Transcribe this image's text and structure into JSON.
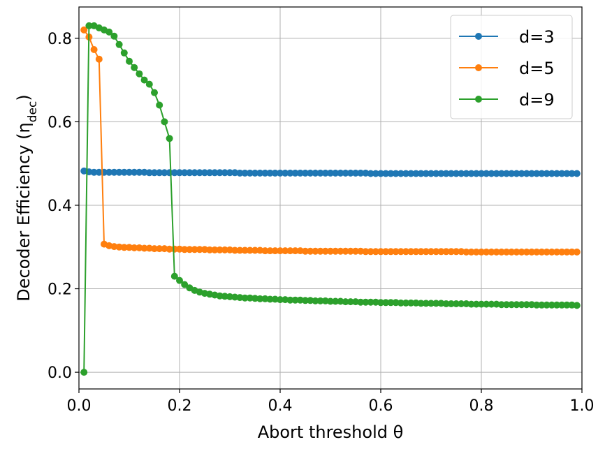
{
  "chart_data": {
    "type": "line",
    "xlabel": "Abort threshold θ",
    "ylabel": "Decoder Efficiency (η",
    "ylabel_sub": "dec",
    "ylabel_close": ")",
    "xlim": [
      0.0,
      1.0
    ],
    "ylim": [
      -0.04,
      0.875
    ],
    "xticks": [
      0.0,
      0.2,
      0.4,
      0.6,
      0.8,
      1.0
    ],
    "xtick_labels": [
      "0.0",
      "0.2",
      "0.4",
      "0.6",
      "0.8",
      "1.0"
    ],
    "yticks": [
      0.0,
      0.2,
      0.4,
      0.6,
      0.8
    ],
    "ytick_labels": [
      "0.0",
      "0.2",
      "0.4",
      "0.6",
      "0.8"
    ],
    "grid": true,
    "legend_position": "top-right",
    "series": [
      {
        "name": "d=3",
        "color": "#1f77b4",
        "x": [
          0.01,
          0.02,
          0.03,
          0.04,
          0.05,
          0.06,
          0.07,
          0.08,
          0.09,
          0.1,
          0.11,
          0.12,
          0.13,
          0.14,
          0.15,
          0.16,
          0.17,
          0.18,
          0.19,
          0.2,
          0.21,
          0.22,
          0.23,
          0.24,
          0.25,
          0.26,
          0.27,
          0.28,
          0.29,
          0.3,
          0.31,
          0.32,
          0.33,
          0.34,
          0.35,
          0.36,
          0.37,
          0.38,
          0.39,
          0.4,
          0.41,
          0.42,
          0.43,
          0.44,
          0.45,
          0.46,
          0.47,
          0.48,
          0.49,
          0.5,
          0.51,
          0.52,
          0.53,
          0.54,
          0.55,
          0.56,
          0.57,
          0.58,
          0.59,
          0.6,
          0.61,
          0.62,
          0.63,
          0.64,
          0.65,
          0.66,
          0.67,
          0.68,
          0.69,
          0.7,
          0.71,
          0.72,
          0.73,
          0.74,
          0.75,
          0.76,
          0.77,
          0.78,
          0.79,
          0.8,
          0.81,
          0.82,
          0.83,
          0.84,
          0.85,
          0.86,
          0.87,
          0.88,
          0.89,
          0.9,
          0.91,
          0.92,
          0.93,
          0.94,
          0.95,
          0.96,
          0.97,
          0.98,
          0.99
        ],
        "y": [
          0.482,
          0.48,
          0.479,
          0.479,
          0.479,
          0.479,
          0.479,
          0.479,
          0.479,
          0.479,
          0.479,
          0.479,
          0.479,
          0.478,
          0.478,
          0.478,
          0.478,
          0.478,
          0.478,
          0.478,
          0.478,
          0.478,
          0.478,
          0.478,
          0.478,
          0.478,
          0.478,
          0.478,
          0.478,
          0.478,
          0.478,
          0.477,
          0.477,
          0.477,
          0.477,
          0.477,
          0.477,
          0.477,
          0.477,
          0.477,
          0.477,
          0.477,
          0.477,
          0.477,
          0.477,
          0.477,
          0.477,
          0.477,
          0.477,
          0.477,
          0.477,
          0.477,
          0.477,
          0.477,
          0.477,
          0.477,
          0.477,
          0.476,
          0.476,
          0.476,
          0.476,
          0.476,
          0.476,
          0.476,
          0.476,
          0.476,
          0.476,
          0.476,
          0.476,
          0.476,
          0.476,
          0.476,
          0.476,
          0.476,
          0.476,
          0.476,
          0.476,
          0.476,
          0.476,
          0.476,
          0.476,
          0.476,
          0.476,
          0.476,
          0.476,
          0.476,
          0.476,
          0.476,
          0.476,
          0.476,
          0.476,
          0.476,
          0.476,
          0.476,
          0.476,
          0.476,
          0.476,
          0.476,
          0.476
        ]
      },
      {
        "name": "d=5",
        "color": "#ff7f0e",
        "x": [
          0.01,
          0.02,
          0.03,
          0.04,
          0.05,
          0.06,
          0.07,
          0.08,
          0.09,
          0.1,
          0.11,
          0.12,
          0.13,
          0.14,
          0.15,
          0.16,
          0.17,
          0.18,
          0.19,
          0.2,
          0.21,
          0.22,
          0.23,
          0.24,
          0.25,
          0.26,
          0.27,
          0.28,
          0.29,
          0.3,
          0.31,
          0.32,
          0.33,
          0.34,
          0.35,
          0.36,
          0.37,
          0.38,
          0.39,
          0.4,
          0.41,
          0.42,
          0.43,
          0.44,
          0.45,
          0.46,
          0.47,
          0.48,
          0.49,
          0.5,
          0.51,
          0.52,
          0.53,
          0.54,
          0.55,
          0.56,
          0.57,
          0.58,
          0.59,
          0.6,
          0.61,
          0.62,
          0.63,
          0.64,
          0.65,
          0.66,
          0.67,
          0.68,
          0.69,
          0.7,
          0.71,
          0.72,
          0.73,
          0.74,
          0.75,
          0.76,
          0.77,
          0.78,
          0.79,
          0.8,
          0.81,
          0.82,
          0.83,
          0.84,
          0.85,
          0.86,
          0.87,
          0.88,
          0.89,
          0.9,
          0.91,
          0.92,
          0.93,
          0.94,
          0.95,
          0.96,
          0.97,
          0.98,
          0.99
        ],
        "y": [
          0.82,
          0.803,
          0.773,
          0.75,
          0.307,
          0.303,
          0.301,
          0.3,
          0.299,
          0.299,
          0.298,
          0.298,
          0.297,
          0.297,
          0.296,
          0.296,
          0.296,
          0.295,
          0.295,
          0.295,
          0.294,
          0.294,
          0.294,
          0.294,
          0.294,
          0.293,
          0.293,
          0.293,
          0.293,
          0.293,
          0.292,
          0.292,
          0.292,
          0.292,
          0.292,
          0.292,
          0.291,
          0.291,
          0.291,
          0.291,
          0.291,
          0.291,
          0.291,
          0.291,
          0.29,
          0.29,
          0.29,
          0.29,
          0.29,
          0.29,
          0.29,
          0.29,
          0.29,
          0.29,
          0.29,
          0.29,
          0.289,
          0.289,
          0.289,
          0.289,
          0.289,
          0.289,
          0.289,
          0.289,
          0.289,
          0.289,
          0.289,
          0.289,
          0.289,
          0.289,
          0.289,
          0.289,
          0.289,
          0.289,
          0.289,
          0.289,
          0.288,
          0.288,
          0.288,
          0.288,
          0.288,
          0.288,
          0.288,
          0.288,
          0.288,
          0.288,
          0.288,
          0.288,
          0.288,
          0.288,
          0.288,
          0.288,
          0.288,
          0.288,
          0.288,
          0.288,
          0.288,
          0.288,
          0.288
        ]
      },
      {
        "name": "d=9",
        "color": "#2ca02c",
        "x": [
          0.01,
          0.02,
          0.03,
          0.04,
          0.05,
          0.06,
          0.07,
          0.08,
          0.09,
          0.1,
          0.11,
          0.12,
          0.13,
          0.14,
          0.15,
          0.16,
          0.17,
          0.18,
          0.19,
          0.2,
          0.21,
          0.22,
          0.23,
          0.24,
          0.25,
          0.26,
          0.27,
          0.28,
          0.29,
          0.3,
          0.31,
          0.32,
          0.33,
          0.34,
          0.35,
          0.36,
          0.37,
          0.38,
          0.39,
          0.4,
          0.41,
          0.42,
          0.43,
          0.44,
          0.45,
          0.46,
          0.47,
          0.48,
          0.49,
          0.5,
          0.51,
          0.52,
          0.53,
          0.54,
          0.55,
          0.56,
          0.57,
          0.58,
          0.59,
          0.6,
          0.61,
          0.62,
          0.63,
          0.64,
          0.65,
          0.66,
          0.67,
          0.68,
          0.69,
          0.7,
          0.71,
          0.72,
          0.73,
          0.74,
          0.75,
          0.76,
          0.77,
          0.78,
          0.79,
          0.8,
          0.81,
          0.82,
          0.83,
          0.84,
          0.85,
          0.86,
          0.87,
          0.88,
          0.89,
          0.9,
          0.91,
          0.92,
          0.93,
          0.94,
          0.95,
          0.96,
          0.97,
          0.98,
          0.99
        ],
        "y": [
          0.0,
          0.83,
          0.83,
          0.825,
          0.82,
          0.815,
          0.805,
          0.785,
          0.765,
          0.745,
          0.73,
          0.715,
          0.7,
          0.69,
          0.67,
          0.64,
          0.6,
          0.56,
          0.23,
          0.22,
          0.21,
          0.202,
          0.196,
          0.192,
          0.189,
          0.187,
          0.185,
          0.183,
          0.182,
          0.181,
          0.18,
          0.179,
          0.178,
          0.178,
          0.177,
          0.176,
          0.176,
          0.175,
          0.175,
          0.174,
          0.174,
          0.173,
          0.173,
          0.173,
          0.172,
          0.172,
          0.171,
          0.171,
          0.171,
          0.17,
          0.17,
          0.17,
          0.169,
          0.169,
          0.169,
          0.168,
          0.168,
          0.168,
          0.168,
          0.167,
          0.167,
          0.167,
          0.167,
          0.166,
          0.166,
          0.166,
          0.166,
          0.165,
          0.165,
          0.165,
          0.165,
          0.165,
          0.164,
          0.164,
          0.164,
          0.164,
          0.164,
          0.163,
          0.163,
          0.163,
          0.163,
          0.163,
          0.163,
          0.162,
          0.162,
          0.162,
          0.162,
          0.162,
          0.162,
          0.162,
          0.161,
          0.161,
          0.161,
          0.161,
          0.161,
          0.161,
          0.161,
          0.161,
          0.16
        ]
      }
    ]
  }
}
